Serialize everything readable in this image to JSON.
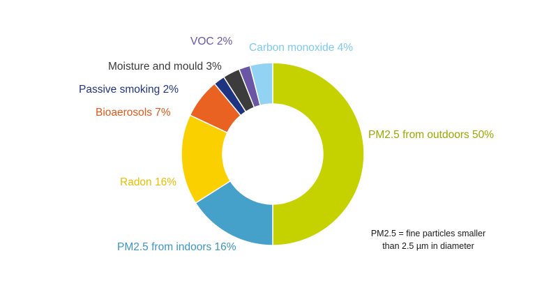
{
  "chart_data": {
    "type": "pie",
    "donut": true,
    "title": "",
    "slices": [
      {
        "label": "PM2.5 from outdoors 50%",
        "value": 50,
        "color": "#c5d200",
        "label_color": "#9aa800"
      },
      {
        "label": "PM2.5 from indoors 16%",
        "value": 16,
        "color": "#45a0ca",
        "label_color": "#3c96c3"
      },
      {
        "label": "Radon 16%",
        "value": 16,
        "color": "#fbd000",
        "label_color": "#e8bf00"
      },
      {
        "label": "Bioaerosols 7%",
        "value": 7,
        "color": "#e96222",
        "label_color": "#e2581a"
      },
      {
        "label": "Passive smoking 2%",
        "value": 2,
        "color": "#1f3480",
        "label_color": "#1f3480"
      },
      {
        "label": "Moisture and mould 3%",
        "value": 3,
        "color": "#3c3c3c",
        "label_color": "#3a3a3a"
      },
      {
        "label": "VOC 2%",
        "value": 2,
        "color": "#6a56a4",
        "label_color": "#6a56a4"
      },
      {
        "label": "Carbon monoxide 4%",
        "value": 4,
        "color": "#92d3f3",
        "label_color": "#7ccaf0"
      }
    ],
    "note": {
      "lines": [
        "PM2.5 = fine particles smaller",
        "than 2.5 µm in diameter"
      ]
    }
  }
}
